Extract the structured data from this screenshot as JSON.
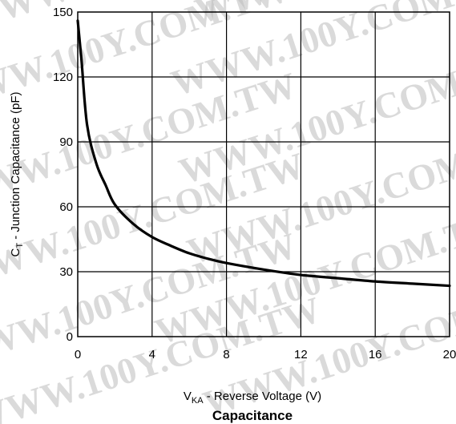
{
  "chart_data": {
    "type": "line",
    "title": "Capacitance",
    "xlabel": {
      "main": "V",
      "sub": "KA",
      "rest": " - Reverse Voltage (V)"
    },
    "ylabel": {
      "main": "C",
      "sub": "T",
      "rest": " - Junction Capacitance (pF)"
    },
    "xlim": [
      0,
      20
    ],
    "ylim": [
      0,
      150
    ],
    "xticks": [
      0,
      4,
      8,
      12,
      16,
      20
    ],
    "yticks": [
      0,
      30,
      60,
      90,
      120,
      150
    ],
    "grid": true,
    "series": [
      {
        "x": [
          0,
          0.2,
          0.5,
          1,
          1.5,
          2,
          3,
          4,
          5,
          6,
          7,
          8,
          10,
          12,
          14,
          16,
          18,
          20
        ],
        "y": [
          146,
          128,
          98,
          80,
          70,
          61,
          52,
          46,
          42,
          38.5,
          36,
          34,
          31,
          28.5,
          27,
          25.5,
          24.5,
          23.5
        ]
      }
    ]
  },
  "watermark": "WWW.100Y.COM.TW",
  "colors": {
    "line": "#000000",
    "grid": "#000000",
    "watermark": "#bdbdbd"
  }
}
